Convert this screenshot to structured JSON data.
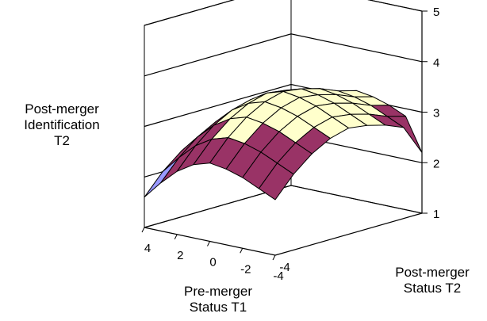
{
  "chart_data": {
    "type": "surface",
    "zlabel_lines": [
      "Post-merger",
      "Identification",
      "T2"
    ],
    "xlabel_lines": [
      "Pre-merger",
      "Status T1"
    ],
    "ylabel_lines": [
      "Post-merger",
      "Status T2"
    ],
    "x_ticks": [
      "4",
      "2",
      "0",
      "-2",
      "-4"
    ],
    "y_ticks": [
      "-4"
    ],
    "z_ticks": [
      "1",
      "2",
      "3",
      "4",
      "5"
    ],
    "zlim": [
      1,
      5
    ],
    "x_range": [
      4,
      -4
    ],
    "y_range": [
      -4,
      4
    ],
    "color_bands": [
      {
        "range": [
          1,
          2
        ],
        "color": "#9999ff"
      },
      {
        "range": [
          2,
          3
        ],
        "color": "#993366"
      },
      {
        "range": [
          3,
          4
        ],
        "color": "#ffffcc"
      },
      {
        "range": [
          4,
          5
        ],
        "color": "#ccffff"
      }
    ],
    "grid": true,
    "x": [
      4,
      3,
      2,
      1,
      0,
      -1,
      -2,
      -3,
      -4
    ],
    "y": [
      -4,
      -3,
      -2,
      -1,
      0,
      1,
      2,
      3,
      4
    ],
    "z": [
      [
        1.6,
        2.0,
        2.3,
        2.5,
        2.6,
        2.55,
        2.45,
        2.3,
        2.2
      ],
      [
        1.95,
        2.35,
        2.65,
        2.85,
        2.95,
        2.9,
        2.8,
        2.65,
        2.55
      ],
      [
        2.25,
        2.65,
        2.95,
        3.15,
        3.25,
        3.2,
        3.1,
        2.95,
        2.85
      ],
      [
        2.45,
        2.85,
        3.15,
        3.35,
        3.45,
        3.4,
        3.3,
        3.15,
        3.05
      ],
      [
        2.55,
        2.95,
        3.25,
        3.45,
        3.55,
        3.5,
        3.4,
        3.25,
        3.15
      ],
      [
        2.5,
        2.9,
        3.2,
        3.4,
        3.5,
        3.45,
        3.35,
        3.2,
        3.1
      ],
      [
        2.4,
        2.8,
        3.1,
        3.3,
        3.4,
        3.35,
        3.25,
        3.1,
        3.0
      ],
      [
        2.25,
        2.65,
        2.95,
        3.15,
        3.25,
        3.2,
        3.1,
        2.95,
        2.85
      ],
      [
        2.1,
        2.5,
        2.8,
        3.0,
        3.1,
        3.05,
        2.95,
        2.8,
        2.2
      ]
    ]
  }
}
